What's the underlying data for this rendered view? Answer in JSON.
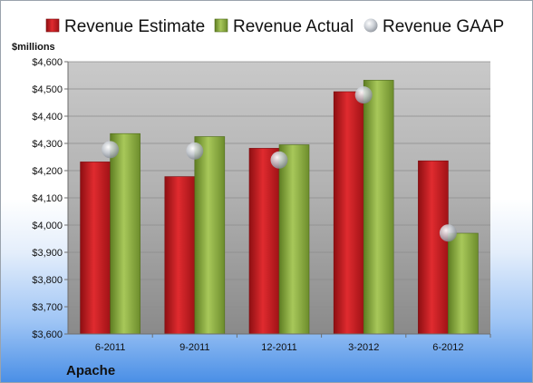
{
  "chart_data": {
    "type": "bar",
    "title": "",
    "xlabel": "",
    "ylabel": "$millions",
    "company": "Apache",
    "ylim": [
      3600,
      4600
    ],
    "y_ticks": [
      "$3,600",
      "$3,700",
      "$3,800",
      "$3,900",
      "$4,000",
      "$4,100",
      "$4,200",
      "$4,300",
      "$4,400",
      "$4,500",
      "$4,600"
    ],
    "y_tick_values": [
      3600,
      3700,
      3800,
      3900,
      4000,
      4100,
      4200,
      4300,
      4400,
      4500,
      4600
    ],
    "categories": [
      "6-2011",
      "9-2011",
      "12-2011",
      "3-2012",
      "6-2012"
    ],
    "series": [
      {
        "name": "Revenue Estimate",
        "type": "bar",
        "color": "#c0161c",
        "values": [
          4232,
          4178,
          4282,
          4490,
          4236
        ]
      },
      {
        "name": "Revenue Actual",
        "type": "bar",
        "color": "#8aaf3c",
        "values": [
          4336,
          4325,
          4295,
          4532,
          3970
        ]
      },
      {
        "name": "Revenue GAAP",
        "type": "marker",
        "color": "#b8bec8",
        "values": [
          4277,
          4272,
          4239,
          4478,
          3971
        ]
      }
    ],
    "grid": true,
    "legend_position": "top"
  }
}
